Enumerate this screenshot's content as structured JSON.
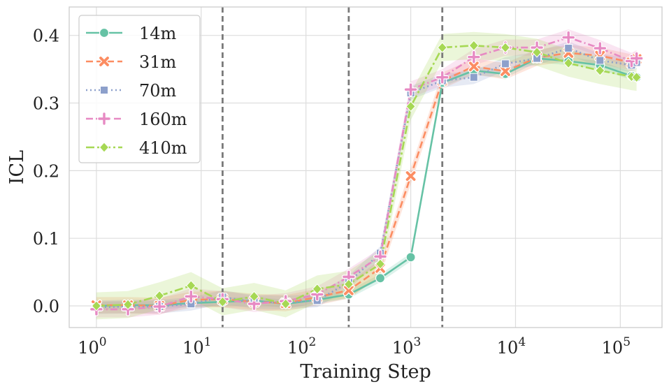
{
  "chart_data": {
    "type": "line",
    "xlabel": "Training Step",
    "ylabel": "ICL",
    "xscale": "log",
    "xlim": [
      0.55,
      250000
    ],
    "ylim": [
      -0.032,
      0.442
    ],
    "grid": true,
    "legend_position": "top-left",
    "x_ticks": [
      {
        "base": "10",
        "exp": "0",
        "value": 1
      },
      {
        "base": "10",
        "exp": "1",
        "value": 10
      },
      {
        "base": "10",
        "exp": "2",
        "value": 100
      },
      {
        "base": "10",
        "exp": "3",
        "value": 1000
      },
      {
        "base": "10",
        "exp": "4",
        "value": 10000
      },
      {
        "base": "10",
        "exp": "5",
        "value": 100000
      }
    ],
    "y_ticks": [
      {
        "label": "0.0",
        "value": 0.0
      },
      {
        "label": "0.1",
        "value": 0.1
      },
      {
        "label": "0.2",
        "value": 0.2
      },
      {
        "label": "0.3",
        "value": 0.3
      },
      {
        "label": "0.4",
        "value": 0.4
      }
    ],
    "vertical_lines": [
      16,
      256,
      2000
    ],
    "x": [
      1,
      2,
      4,
      8,
      16,
      32,
      64,
      128,
      256,
      512,
      1000,
      2000,
      4000,
      8000,
      16000,
      32000,
      64000,
      128000,
      143000
    ],
    "series": [
      {
        "name": "14m",
        "color": "#66c2a5",
        "dash": "",
        "marker": "circle",
        "values": [
          0.0,
          0.001,
          0.001,
          0.004,
          0.006,
          0.008,
          0.003,
          0.009,
          0.017,
          0.041,
          0.072,
          0.33,
          0.348,
          0.343,
          0.366,
          0.362,
          0.356,
          0.34,
          0.338
        ],
        "band": 0.006
      },
      {
        "name": "31m",
        "color": "#fc8d62",
        "dash": "10,5",
        "marker": "x",
        "values": [
          0.001,
          0.001,
          0.0,
          0.009,
          0.01,
          0.006,
          0.004,
          0.013,
          0.023,
          0.056,
          0.192,
          0.333,
          0.354,
          0.347,
          0.367,
          0.374,
          0.37,
          0.36,
          0.365
        ],
        "band": 0.012
      },
      {
        "name": "70m",
        "color": "#8da0cb",
        "dash": "2,4",
        "marker": "square",
        "values": [
          -0.002,
          -0.001,
          -0.001,
          0.003,
          0.013,
          0.006,
          0.005,
          0.008,
          0.035,
          0.078,
          0.315,
          0.333,
          0.338,
          0.358,
          0.366,
          0.381,
          0.363,
          0.356,
          0.36
        ],
        "band": 0.01
      },
      {
        "name": "160m",
        "color": "#e78ac3",
        "dash": "10,4,2,4",
        "marker": "plus",
        "values": [
          -0.005,
          -0.005,
          -0.001,
          0.014,
          0.01,
          0.003,
          0.007,
          0.017,
          0.043,
          0.073,
          0.32,
          0.338,
          0.368,
          0.382,
          0.382,
          0.397,
          0.381,
          0.362,
          0.366
        ],
        "band": 0.012
      },
      {
        "name": "410m",
        "color": "#a6d854",
        "dash": "12,4,3,4",
        "marker": "diamond",
        "values": [
          0.0,
          0.002,
          0.015,
          0.03,
          0.006,
          0.014,
          0.003,
          0.025,
          0.032,
          0.062,
          0.295,
          0.382,
          0.385,
          0.382,
          0.375,
          0.359,
          0.348,
          0.339,
          0.338
        ],
        "band": 0.02
      }
    ]
  }
}
